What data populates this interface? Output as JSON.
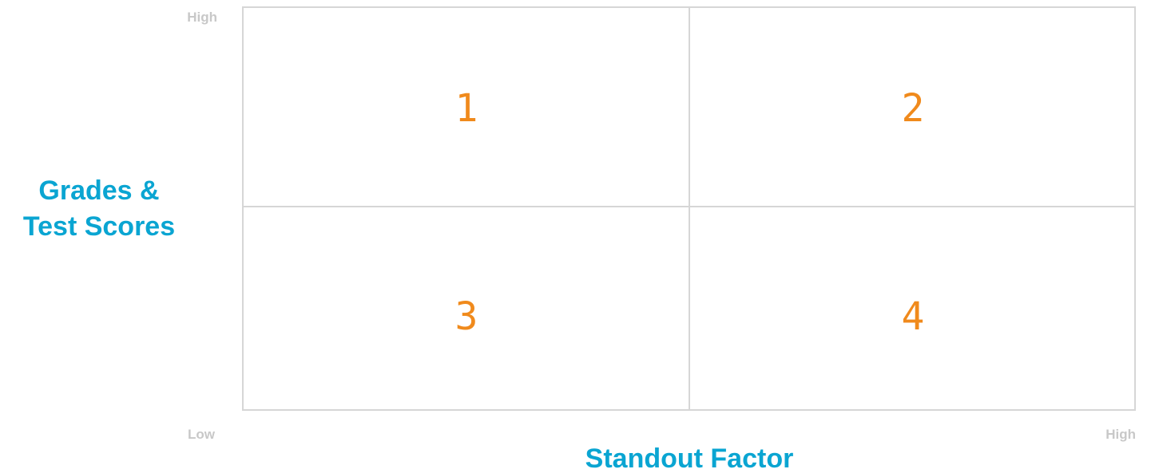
{
  "y_axis": {
    "label_lines": [
      "Grades &",
      "Test Scores"
    ],
    "high": "High"
  },
  "x_axis": {
    "label": "Standout Factor",
    "low": "Low",
    "high": "High"
  },
  "quadrants": [
    "1",
    "2",
    "3",
    "4"
  ]
}
